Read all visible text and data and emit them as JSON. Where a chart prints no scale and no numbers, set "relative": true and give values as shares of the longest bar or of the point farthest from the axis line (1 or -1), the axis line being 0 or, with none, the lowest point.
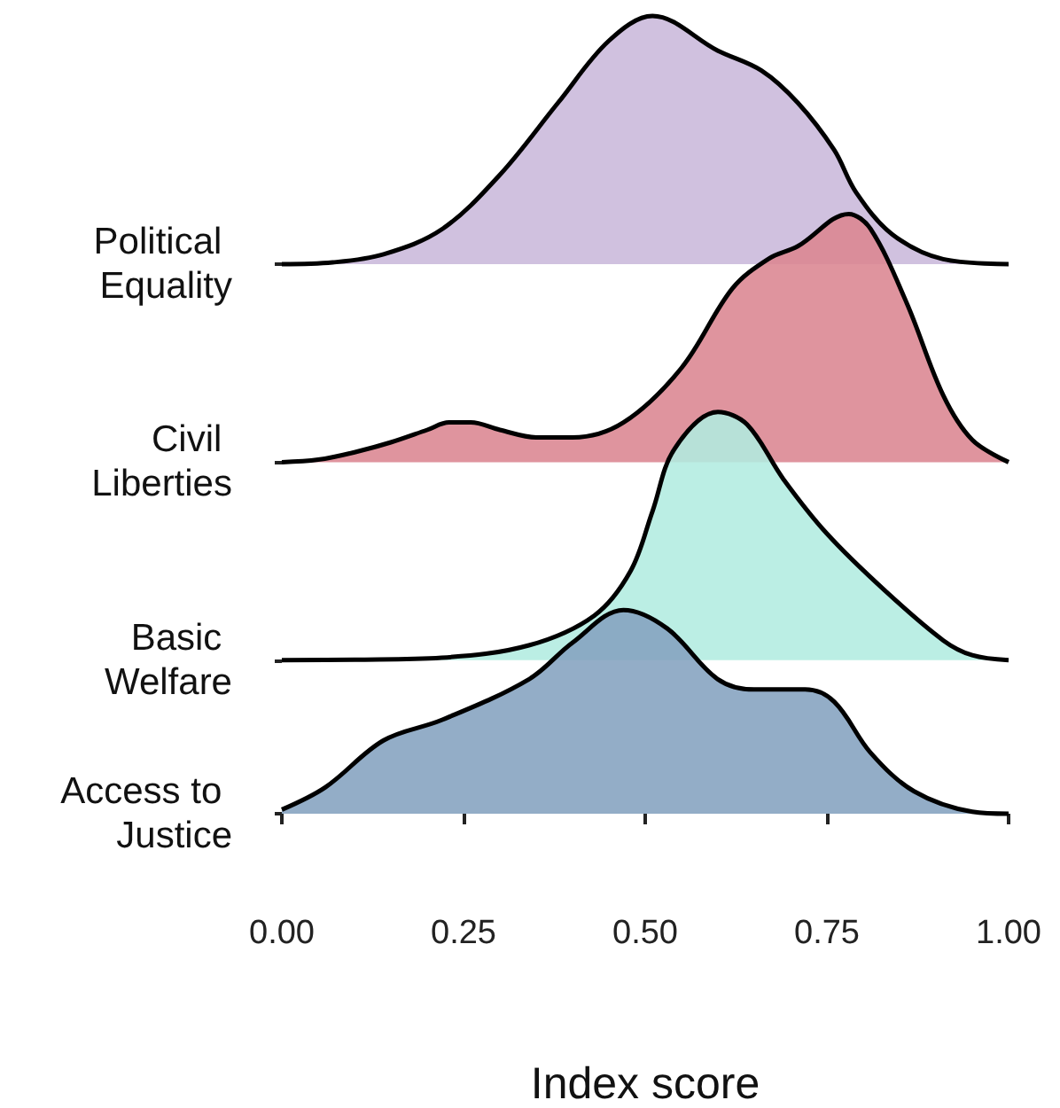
{
  "chart_data": [
    {
      "type": "area",
      "relative": true,
      "xlim": [
        0,
        1
      ],
      "tick_labels": false,
      "grid": false,
      "legend": false,
      "series": [
        {
          "name": "Political Equality",
          "color": "#c9b8db",
          "x": [
            0,
            0.07,
            0.14,
            0.22,
            0.3,
            0.38,
            0.45,
            0.51,
            0.6,
            0.66,
            0.71,
            0.76,
            0.79,
            0.84,
            0.91,
            1
          ],
          "values": [
            0,
            0.007,
            0.04,
            0.14,
            0.36,
            0.65,
            0.9,
            1,
            0.86,
            0.78,
            0.65,
            0.46,
            0.29,
            0.12,
            0.02,
            0
          ]
        }
      ]
    },
    {
      "type": "area",
      "relative": true,
      "xlim": [
        0,
        1
      ],
      "tick_labels": false,
      "grid": false,
      "legend": false,
      "series": [
        {
          "name": "Civil Liberties",
          "color": "#db8591",
          "x": [
            0,
            0.05,
            0.1,
            0.15,
            0.2,
            0.23,
            0.26,
            0.3,
            0.35,
            0.4,
            0.47,
            0.55,
            0.62,
            0.67,
            0.71,
            0.78,
            0.81,
            0.86,
            0.91,
            0.95,
            1
          ],
          "values": [
            0,
            0.01,
            0.04,
            0.08,
            0.13,
            0.16,
            0.16,
            0.13,
            0.1,
            0.1,
            0.16,
            0.38,
            0.7,
            0.82,
            0.87,
            1,
            0.94,
            0.64,
            0.27,
            0.09,
            0
          ]
        }
      ]
    },
    {
      "type": "area",
      "relative": true,
      "xlim": [
        0,
        1
      ],
      "tick_labels": false,
      "grid": false,
      "legend": false,
      "series": [
        {
          "name": "Basic Welfare",
          "color": "#b2ece0",
          "x": [
            0,
            0.1,
            0.22,
            0.34,
            0.43,
            0.48,
            0.51,
            0.54,
            0.6,
            0.64,
            0.69,
            0.75,
            0.83,
            0.91,
            0.95,
            1
          ],
          "values": [
            0,
            0.002,
            0.01,
            0.06,
            0.18,
            0.36,
            0.6,
            0.85,
            1,
            0.95,
            0.73,
            0.51,
            0.28,
            0.08,
            0.02,
            0
          ]
        }
      ]
    },
    {
      "type": "area",
      "relative": true,
      "xlabel": "Index score",
      "xlim": [
        0,
        1
      ],
      "xticks": [
        {
          "value": 0,
          "label": "0.00"
        },
        {
          "value": 0.25,
          "label": "0.25"
        },
        {
          "value": 0.5,
          "label": "0.50"
        },
        {
          "value": 0.75,
          "label": "0.75"
        },
        {
          "value": 1,
          "label": "1.00"
        }
      ],
      "tick_labels": "x",
      "grid": false,
      "legend": false,
      "series": [
        {
          "name": "Access to Justice",
          "color": "#84a2bf",
          "x": [
            0,
            0.06,
            0.14,
            0.22,
            0.34,
            0.4,
            0.47,
            0.53,
            0.6,
            0.65,
            0.72,
            0.76,
            0.81,
            0.87,
            0.95,
            1
          ],
          "values": [
            0.02,
            0.13,
            0.36,
            0.46,
            0.66,
            0.84,
            1,
            0.91,
            0.66,
            0.61,
            0.61,
            0.55,
            0.3,
            0.11,
            0.01,
            0
          ]
        }
      ]
    }
  ]
}
